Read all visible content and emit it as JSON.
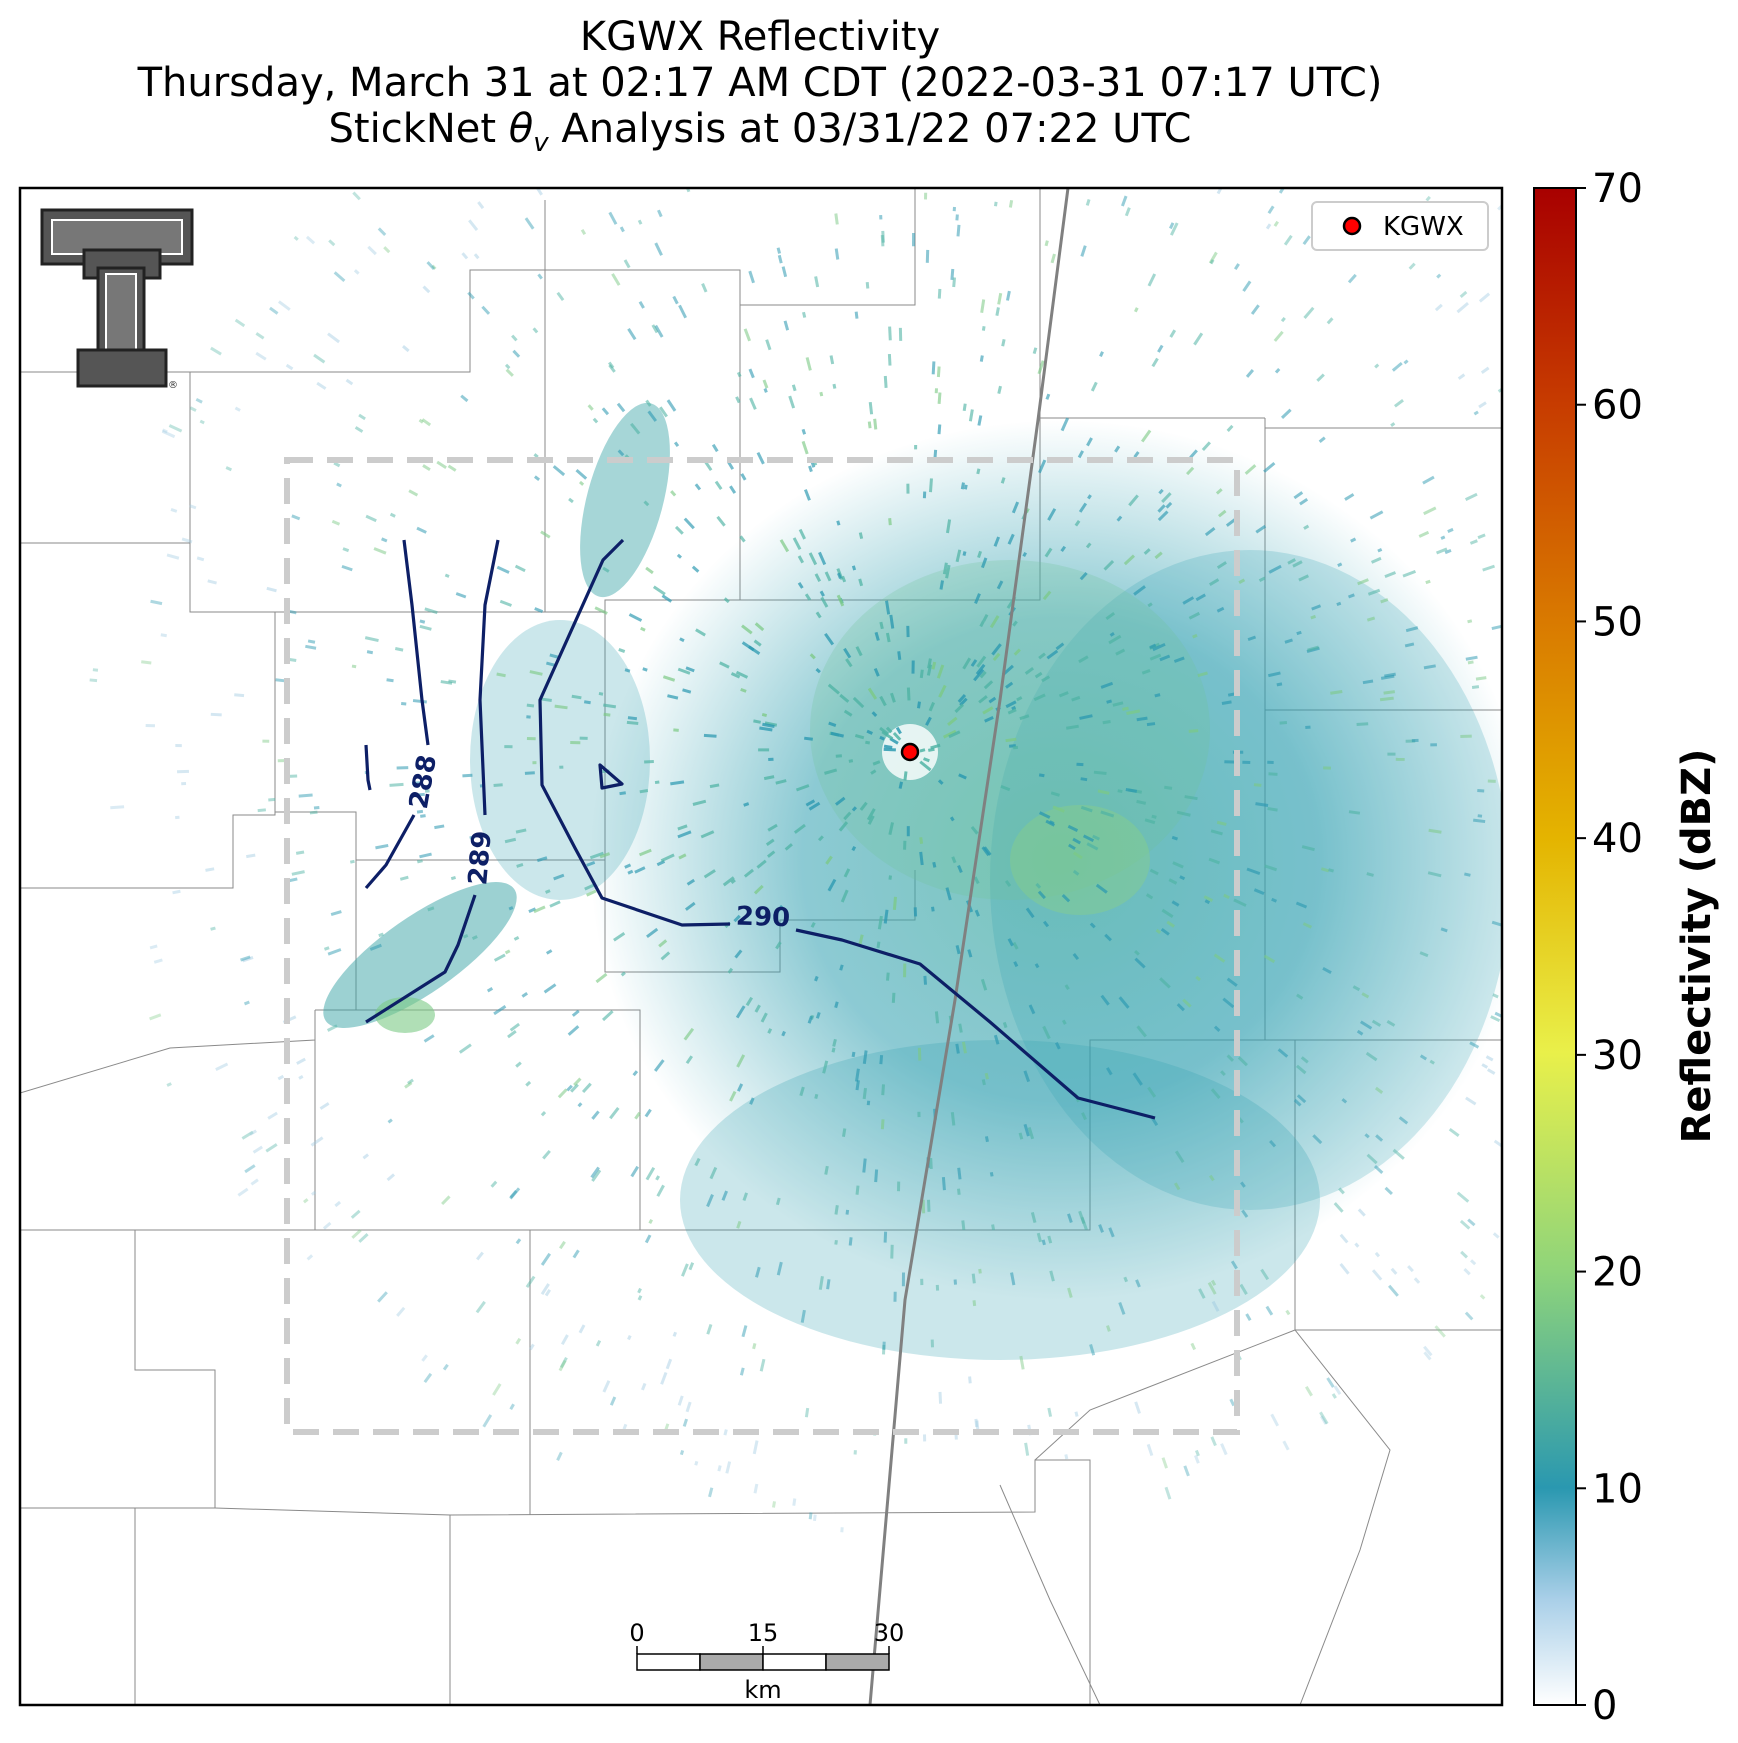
{
  "title": {
    "line1": "KGWX Reflectivity",
    "line2": "Thursday, March 31 at 02:17 AM CDT (2022-03-31 07:17 UTC)",
    "line3_prefix": "StickNet ",
    "line3_symbol": "θ",
    "line3_subscript": "v",
    "line3_suffix": " Analysis at 03/31/22 07:22 UTC"
  },
  "legend": {
    "label": "KGWX",
    "marker_color": "#ff0000"
  },
  "colorbar": {
    "label": "Reflectivity (dBZ)",
    "min": 0,
    "max": 70,
    "ticks": [
      "0",
      "10",
      "20",
      "30",
      "40",
      "50",
      "60",
      "70"
    ],
    "colors": [
      "#ffffff",
      "#2a98b0",
      "#8fd47a",
      "#e9f04a",
      "#e4b400",
      "#d97a00",
      "#c73c00",
      "#a80000"
    ]
  },
  "contours": [
    {
      "value": "288",
      "color": "#0d1f66"
    },
    {
      "value": "289",
      "color": "#0d1f66"
    },
    {
      "value": "290",
      "color": "#0d1f66"
    }
  ],
  "scalebar": {
    "ticks": [
      "0",
      "15",
      "30"
    ],
    "unit": "km"
  },
  "logo": {
    "text": "T",
    "trademark": "®",
    "icon": "texas-tech-double-t-logo"
  },
  "analysis_box": {
    "style": "dashed",
    "color": "#cccccc"
  }
}
